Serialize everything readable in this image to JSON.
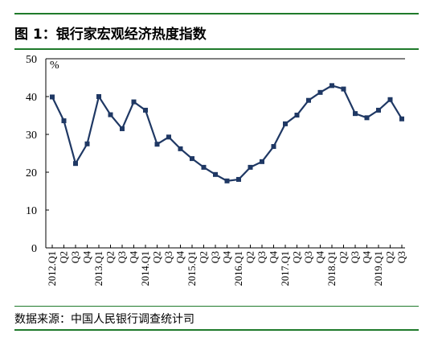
{
  "figure": {
    "title": "图 1：银行家宏观经济热度指数",
    "source": "数据来源：中国人民银行调查统计司",
    "accent_color": "#1f7a2b",
    "series_color": "#1f3864"
  },
  "chart_data": {
    "type": "line",
    "title": "图 1：银行家宏观经济热度指数",
    "ylabel": "%",
    "ylim": [
      0,
      50
    ],
    "yticks": [
      0,
      10,
      20,
      30,
      40,
      50
    ],
    "grid": false,
    "categories": [
      "2012.Q1",
      "Q2",
      "Q3",
      "Q4",
      "2013.Q1",
      "Q2",
      "Q3",
      "Q4",
      "2014.Q1",
      "Q2",
      "Q3",
      "Q4",
      "2015.Q1",
      "Q2",
      "Q3",
      "Q4",
      "2016.Q1",
      "Q2",
      "Q3",
      "Q4",
      "2017.Q1",
      "Q2",
      "Q3",
      "Q4",
      "2018.Q1",
      "Q2",
      "Q3",
      "Q4",
      "2019.Q1",
      "Q2",
      "Q3"
    ],
    "values": [
      39.9,
      33.6,
      22.3,
      27.5,
      40.0,
      35.2,
      31.5,
      38.6,
      36.4,
      27.4,
      29.3,
      26.2,
      23.6,
      21.3,
      19.4,
      17.7,
      18.1,
      21.3,
      22.8,
      26.8,
      32.8,
      35.1,
      39.0,
      41.1,
      42.9,
      42.0,
      35.5,
      34.4,
      36.4,
      39.2,
      34.1
    ]
  }
}
